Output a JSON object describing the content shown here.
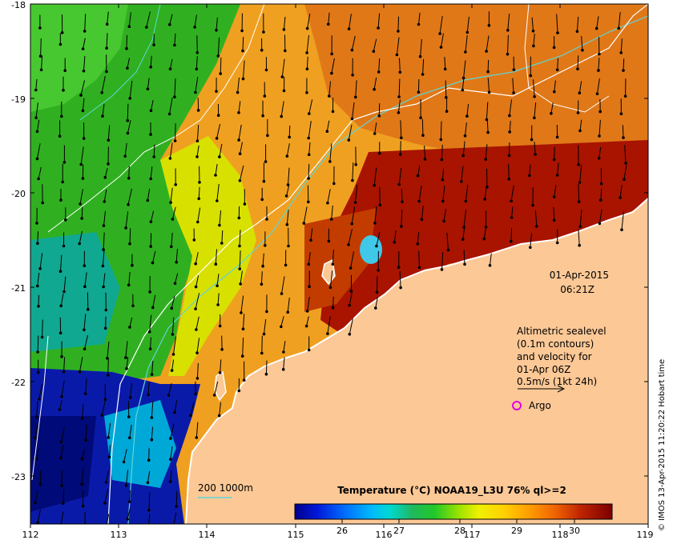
{
  "map": {
    "lon_ticks": [
      "112",
      "113",
      "114",
      "115",
      "116",
      "117",
      "118",
      "119"
    ],
    "lat_ticks": [
      "-18",
      "-19",
      "-20",
      "-21",
      "-22",
      "-23"
    ],
    "date": "01-Apr-2015",
    "time": "06:21Z",
    "altimetry_note": [
      "Altimetric sealevel",
      "(0.1m contours)",
      "and velocity for",
      "01-Apr 06Z",
      "0.5m/s (1kt 24h)"
    ],
    "argo_label": "Argo",
    "bathymetry_legend": "200  1000m",
    "credit": "© IMOS 13-Apr-2015 11:20:22 Hobart time",
    "colors": {
      "land": "#fcc896",
      "argo": "#e000e0",
      "contour_200m": "#5fd6d6",
      "contour_1000m": "#ffffff"
    }
  },
  "colorbar": {
    "title": "Temperature (°C) NOAA19_L3U 76% ql>=2",
    "ticks": [
      "26",
      "27",
      "28",
      "29",
      "30"
    ],
    "colors": [
      "#00008b",
      "#0010d0",
      "#0060ff",
      "#00a8ff",
      "#00d4c8",
      "#10b060",
      "#20c020",
      "#90e000",
      "#e8f000",
      "#ffd000",
      "#ffa000",
      "#ff7000",
      "#e04000",
      "#b01000",
      "#800000"
    ]
  }
}
